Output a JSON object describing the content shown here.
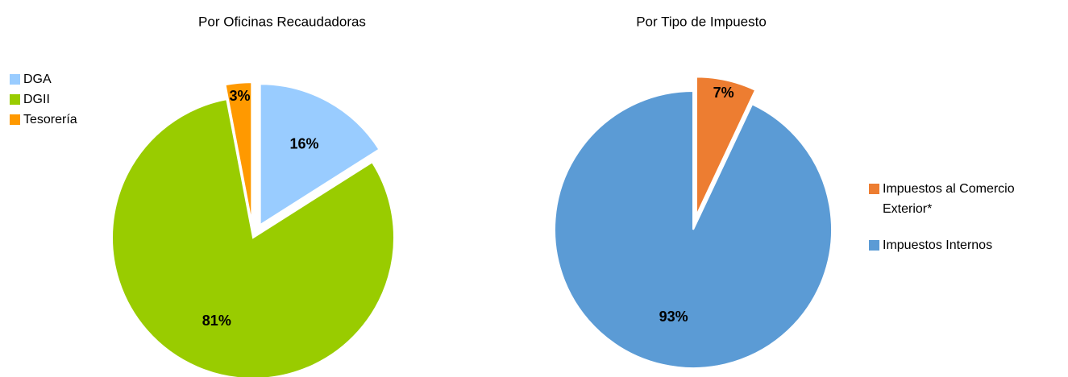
{
  "chart_data": [
    {
      "type": "pie",
      "title": "Por Oficinas Recaudadoras",
      "categories": [
        "DGA",
        "DGII",
        "Tesorería"
      ],
      "values": [
        16,
        81,
        3
      ],
      "value_labels": [
        "16%",
        "81%",
        "3%"
      ],
      "colors": [
        "#99ccff",
        "#99cc00",
        "#ff9900"
      ],
      "explode": [
        true,
        false,
        true
      ],
      "legend": "left"
    },
    {
      "type": "pie",
      "title": "Por Tipo de Impuesto",
      "categories": [
        "Impuestos al Comercio Exterior*",
        "Impuestos Internos"
      ],
      "values": [
        7,
        93
      ],
      "value_labels": [
        "7%",
        "93%"
      ],
      "colors": [
        "#ed7d31",
        "#5b9bd5"
      ],
      "explode": [
        true,
        false
      ],
      "legend": "right"
    }
  ]
}
